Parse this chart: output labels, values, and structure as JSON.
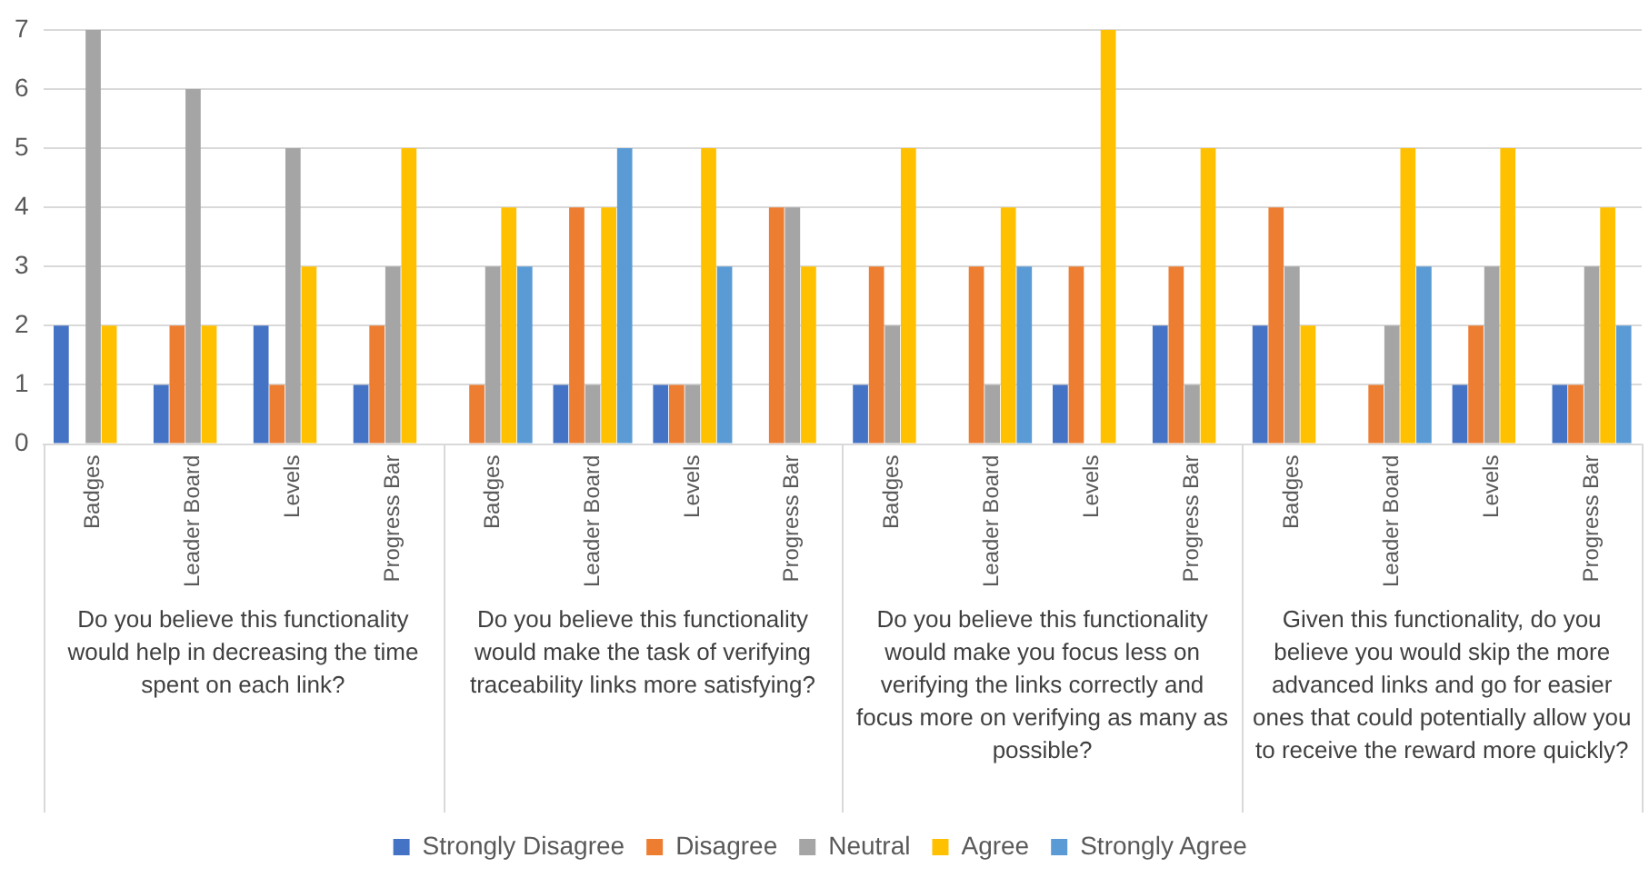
{
  "chart_data": {
    "type": "bar",
    "categories": [
      "Badges",
      "Leader Board",
      "Levels",
      "Progress Bar",
      "Badges",
      "Leader Board",
      "Levels",
      "Progress Bar",
      "Badges",
      "Leader Board",
      "Levels",
      "Progress Bar",
      "Badges",
      "Leader Board",
      "Levels",
      "Progress Bar"
    ],
    "series": [
      {
        "name": "Strongly Disagree",
        "color": "#4472c4",
        "values": [
          2,
          1,
          2,
          1,
          0,
          1,
          1,
          0,
          1,
          0,
          1,
          2,
          2,
          0,
          1,
          1
        ]
      },
      {
        "name": "Disagree",
        "color": "#ed7d31",
        "values": [
          0,
          2,
          1,
          2,
          1,
          4,
          1,
          4,
          3,
          3,
          3,
          3,
          4,
          1,
          2,
          1
        ]
      },
      {
        "name": "Neutral",
        "color": "#a5a5a5",
        "values": [
          7,
          6,
          5,
          3,
          3,
          1,
          1,
          4,
          2,
          1,
          0,
          1,
          3,
          2,
          3,
          3
        ]
      },
      {
        "name": "Agree",
        "color": "#ffc000",
        "values": [
          2,
          2,
          3,
          5,
          4,
          4,
          5,
          3,
          5,
          4,
          7,
          5,
          2,
          5,
          5,
          4
        ]
      },
      {
        "name": "Strongly Agree",
        "color": "#5b9bd5",
        "values": [
          0,
          0,
          0,
          0,
          3,
          5,
          3,
          0,
          0,
          3,
          0,
          0,
          0,
          3,
          0,
          2
        ]
      }
    ],
    "annotations": [
      "Do you believe this functionality would help in decreasing the time spent on each link?",
      "Do you believe this functionality would make the task of verifying traceability links more satisfying?",
      "Do you believe this functionality would make you focus less on verifying the links correctly and focus more on verifying as many as possible?",
      "Given this functionality, do you believe you would skip the more advanced links and go for easier ones that could potentially allow you to receive the reward more quickly?"
    ],
    "ylim": [
      0,
      7
    ],
    "yticks": [
      0,
      1,
      2,
      3,
      4,
      5,
      6,
      7
    ],
    "grid": "y",
    "legend": "bottom"
  }
}
